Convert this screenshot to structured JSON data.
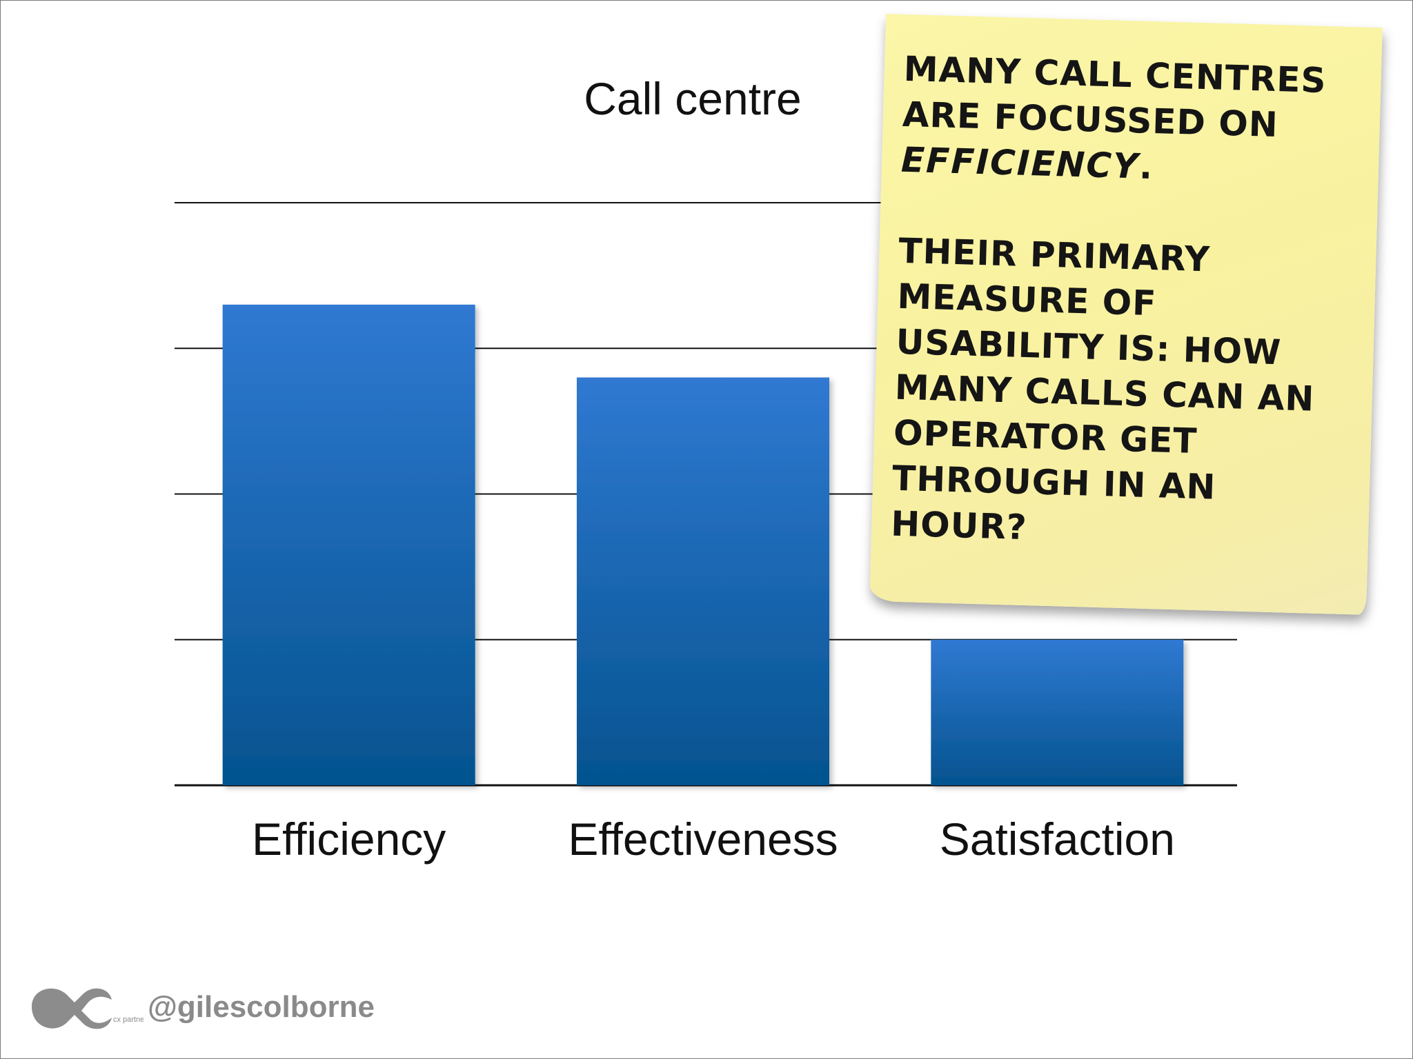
{
  "chart_data": {
    "type": "bar",
    "title": "Call centre",
    "categories": [
      "Efficiency",
      "Effectiveness",
      "Satisfaction"
    ],
    "values": [
      3.3,
      2.8,
      1.0
    ],
    "ylim": [
      0,
      4
    ],
    "grid": true,
    "xlabel": "",
    "ylabel": ""
  },
  "note": {
    "line1": "Many call centres",
    "line2": "are focussed on",
    "emphasis": "efficiency",
    "line3_suffix": ".",
    "para2": "Their primary\nmeasure of\nusability is: how\nmany calls can an\noperator get\nthrough in an\nhour?"
  },
  "colors": {
    "bar_top": "#3079d2",
    "bar_bottom": "#04538f",
    "gridline": "#111111",
    "note_bg": "#f8f2a0"
  },
  "footer": {
    "logo_icon": "cx-partners-logo-icon",
    "logo_text": "cx partners",
    "handle": "@gilescolborne"
  }
}
